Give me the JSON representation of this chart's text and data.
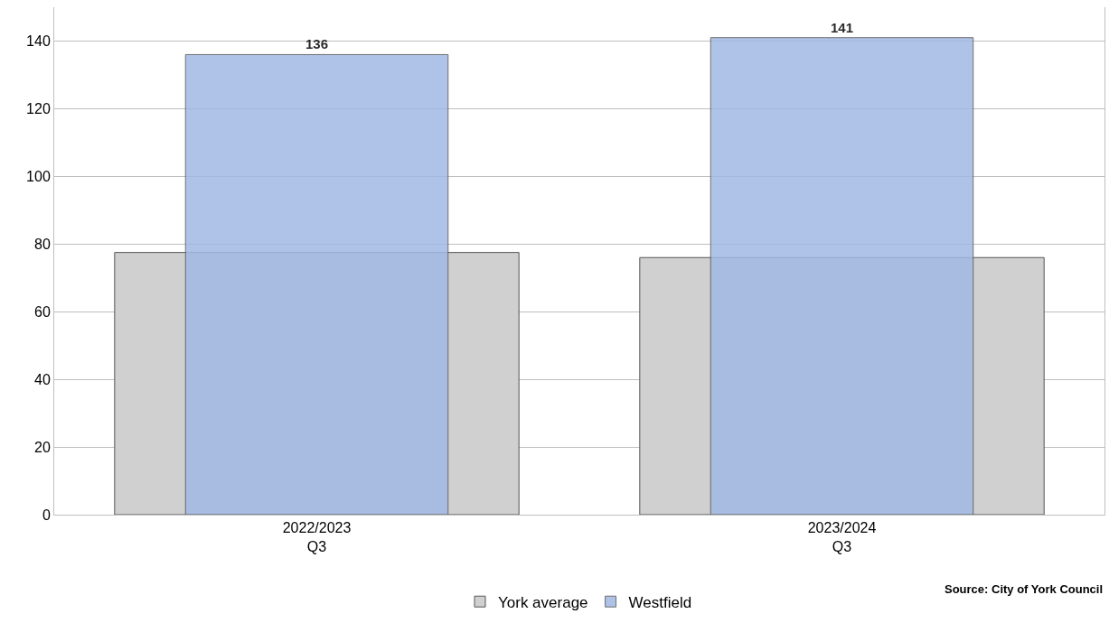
{
  "chart_data": {
    "type": "bar",
    "categories": [
      "2022/2023\nQ3",
      "2023/2024\nQ3"
    ],
    "series": [
      {
        "name": "York average",
        "color": "#d0d0d0",
        "values": [
          77.5,
          76
        ]
      },
      {
        "name": "Westfield",
        "color": "#a1b8e3",
        "values": [
          136,
          141
        ],
        "value_labels": [
          "136",
          "141"
        ]
      }
    ],
    "ylim": [
      0,
      150
    ],
    "yticks": [
      0,
      20,
      40,
      60,
      80,
      100,
      120,
      140
    ],
    "grid": "y",
    "legend": "bottom",
    "annotations": [
      "Source: City of York Council"
    ]
  }
}
